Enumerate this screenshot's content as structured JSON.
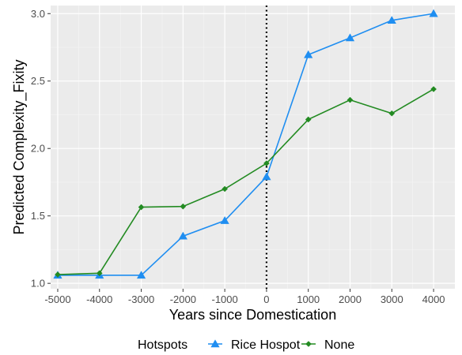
{
  "chart_data": {
    "type": "line",
    "title": "",
    "xlabel": "Years since Domestication",
    "ylabel": "Predicted Complexity_Fixity",
    "x": [
      -5000,
      -4000,
      -3000,
      -2000,
      -1000,
      0,
      1000,
      2000,
      3000,
      4000
    ],
    "x_tick_labels": [
      "-5000",
      "-4000",
      "-3000",
      "-2000",
      "-1000",
      "0",
      "1000",
      "2000",
      "3000",
      "4000"
    ],
    "y_ticks": [
      1.0,
      1.5,
      2.0,
      2.5,
      3.0
    ],
    "y_tick_labels": [
      "1.0",
      "1.5",
      "2.0",
      "2.5",
      "3.0"
    ],
    "xlim": [
      -5170,
      4510
    ],
    "ylim": [
      0.96,
      3.06
    ],
    "grid": true,
    "vline": {
      "x": 0,
      "style": "dotted",
      "color": "#000000"
    },
    "legend": {
      "title": "Hotspots",
      "position": "bottom"
    },
    "series": [
      {
        "name": "Rice Hospot",
        "color": "#1f8ef1",
        "marker": "triangle",
        "values": [
          1.06,
          1.06,
          1.06,
          1.35,
          1.465,
          1.79,
          2.695,
          2.82,
          2.95,
          3.0
        ]
      },
      {
        "name": "None",
        "color": "#238b22",
        "marker": "diamond",
        "values": [
          1.065,
          1.075,
          1.565,
          1.57,
          1.7,
          1.89,
          2.215,
          2.36,
          2.26,
          2.44
        ]
      }
    ]
  }
}
